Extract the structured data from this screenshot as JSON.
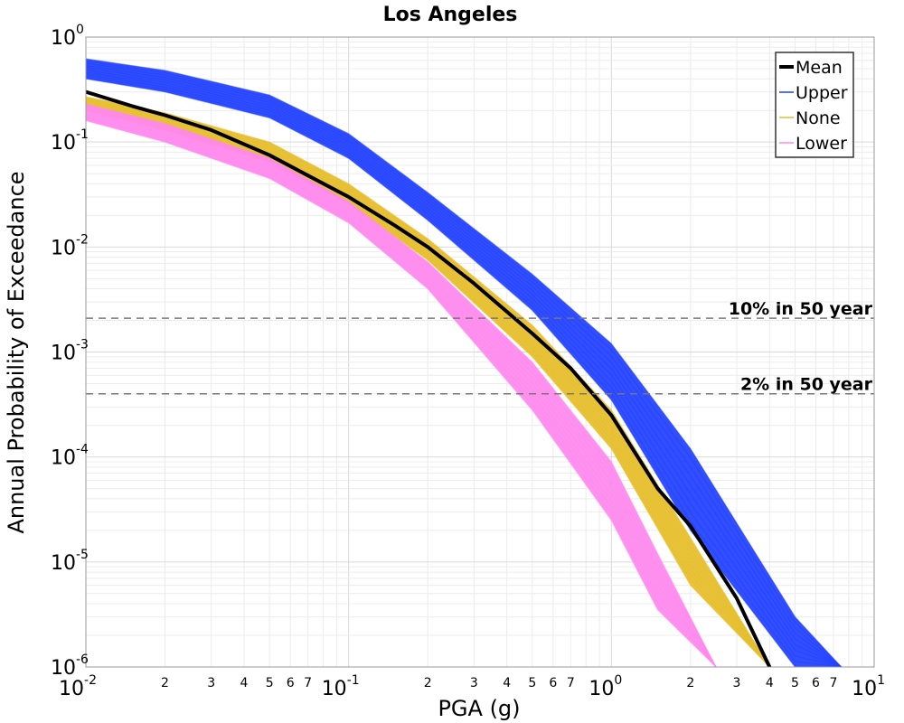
{
  "chart_data": {
    "type": "line",
    "title": "Los Angeles",
    "xlabel": "PGA (g)",
    "ylabel": "Annual Probability of Exceedance",
    "xscale": "log",
    "yscale": "log",
    "xlim": [
      0.01,
      10
    ],
    "ylim": [
      1e-06,
      1
    ],
    "grid": true,
    "legend_position": "top-right",
    "x_major_ticks": [
      {
        "base": "10",
        "exp": "-2"
      },
      {
        "base": "10",
        "exp": "-1"
      },
      {
        "base": "10",
        "exp": "0"
      },
      {
        "base": "10",
        "exp": "1"
      }
    ],
    "y_major_ticks": [
      {
        "base": "10",
        "exp": "0"
      },
      {
        "base": "10",
        "exp": "-1"
      },
      {
        "base": "10",
        "exp": "-2"
      },
      {
        "base": "10",
        "exp": "-3"
      },
      {
        "base": "10",
        "exp": "-4"
      },
      {
        "base": "10",
        "exp": "-5"
      },
      {
        "base": "10",
        "exp": "-6"
      }
    ],
    "x_minor_tick_labels": [
      "2",
      "3",
      "4",
      "5",
      "6",
      "7"
    ],
    "series": [
      {
        "name": "Upper",
        "color": "#1f3fff",
        "style": "band",
        "x": [
          0.01,
          0.02,
          0.05,
          0.1,
          0.2,
          0.5,
          1,
          2,
          5,
          7.5
        ],
        "lower": [
          0.4,
          0.3,
          0.17,
          0.07,
          0.018,
          0.0025,
          0.00035,
          2e-05,
          1e-06,
          1e-06
        ],
        "upper": [
          0.62,
          0.48,
          0.28,
          0.12,
          0.033,
          0.0055,
          0.0012,
          0.00012,
          3e-06,
          1e-06
        ]
      },
      {
        "name": "None",
        "color": "#e6be2a",
        "style": "band",
        "x": [
          0.01,
          0.02,
          0.05,
          0.1,
          0.2,
          0.5,
          1,
          2,
          4
        ],
        "lower": [
          0.2,
          0.13,
          0.065,
          0.026,
          0.0075,
          0.0009,
          0.00012,
          6e-06,
          1e-06
        ],
        "upper": [
          0.27,
          0.19,
          0.1,
          0.04,
          0.012,
          0.0018,
          0.00028,
          1.7e-05,
          1e-06
        ]
      },
      {
        "name": "Lower",
        "color": "#ff88ee",
        "style": "band",
        "x": [
          0.01,
          0.02,
          0.05,
          0.1,
          0.2,
          0.5,
          1,
          1.5,
          2.5
        ],
        "lower": [
          0.16,
          0.1,
          0.045,
          0.017,
          0.004,
          0.00028,
          2.5e-05,
          3.5e-06,
          1e-06
        ],
        "upper": [
          0.23,
          0.15,
          0.07,
          0.027,
          0.0072,
          0.0008,
          9e-05,
          1.2e-05,
          1e-06
        ]
      },
      {
        "name": "Mean",
        "color": "#000000",
        "style": "line",
        "x": [
          0.01,
          0.015,
          0.02,
          0.03,
          0.05,
          0.07,
          0.1,
          0.15,
          0.2,
          0.3,
          0.5,
          0.7,
          1,
          1.5,
          2,
          3,
          4
        ],
        "y": [
          0.3,
          0.22,
          0.18,
          0.13,
          0.075,
          0.048,
          0.03,
          0.016,
          0.01,
          0.0045,
          0.0015,
          0.0007,
          0.00025,
          5e-05,
          2.2e-05,
          4.5e-06,
          1e-06
        ]
      }
    ],
    "reference_lines": [
      {
        "label": "10% in 50 year",
        "y": 0.0021,
        "color": "#777777"
      },
      {
        "label": "2% in 50 year",
        "y": 0.0004,
        "color": "#777777"
      }
    ]
  }
}
